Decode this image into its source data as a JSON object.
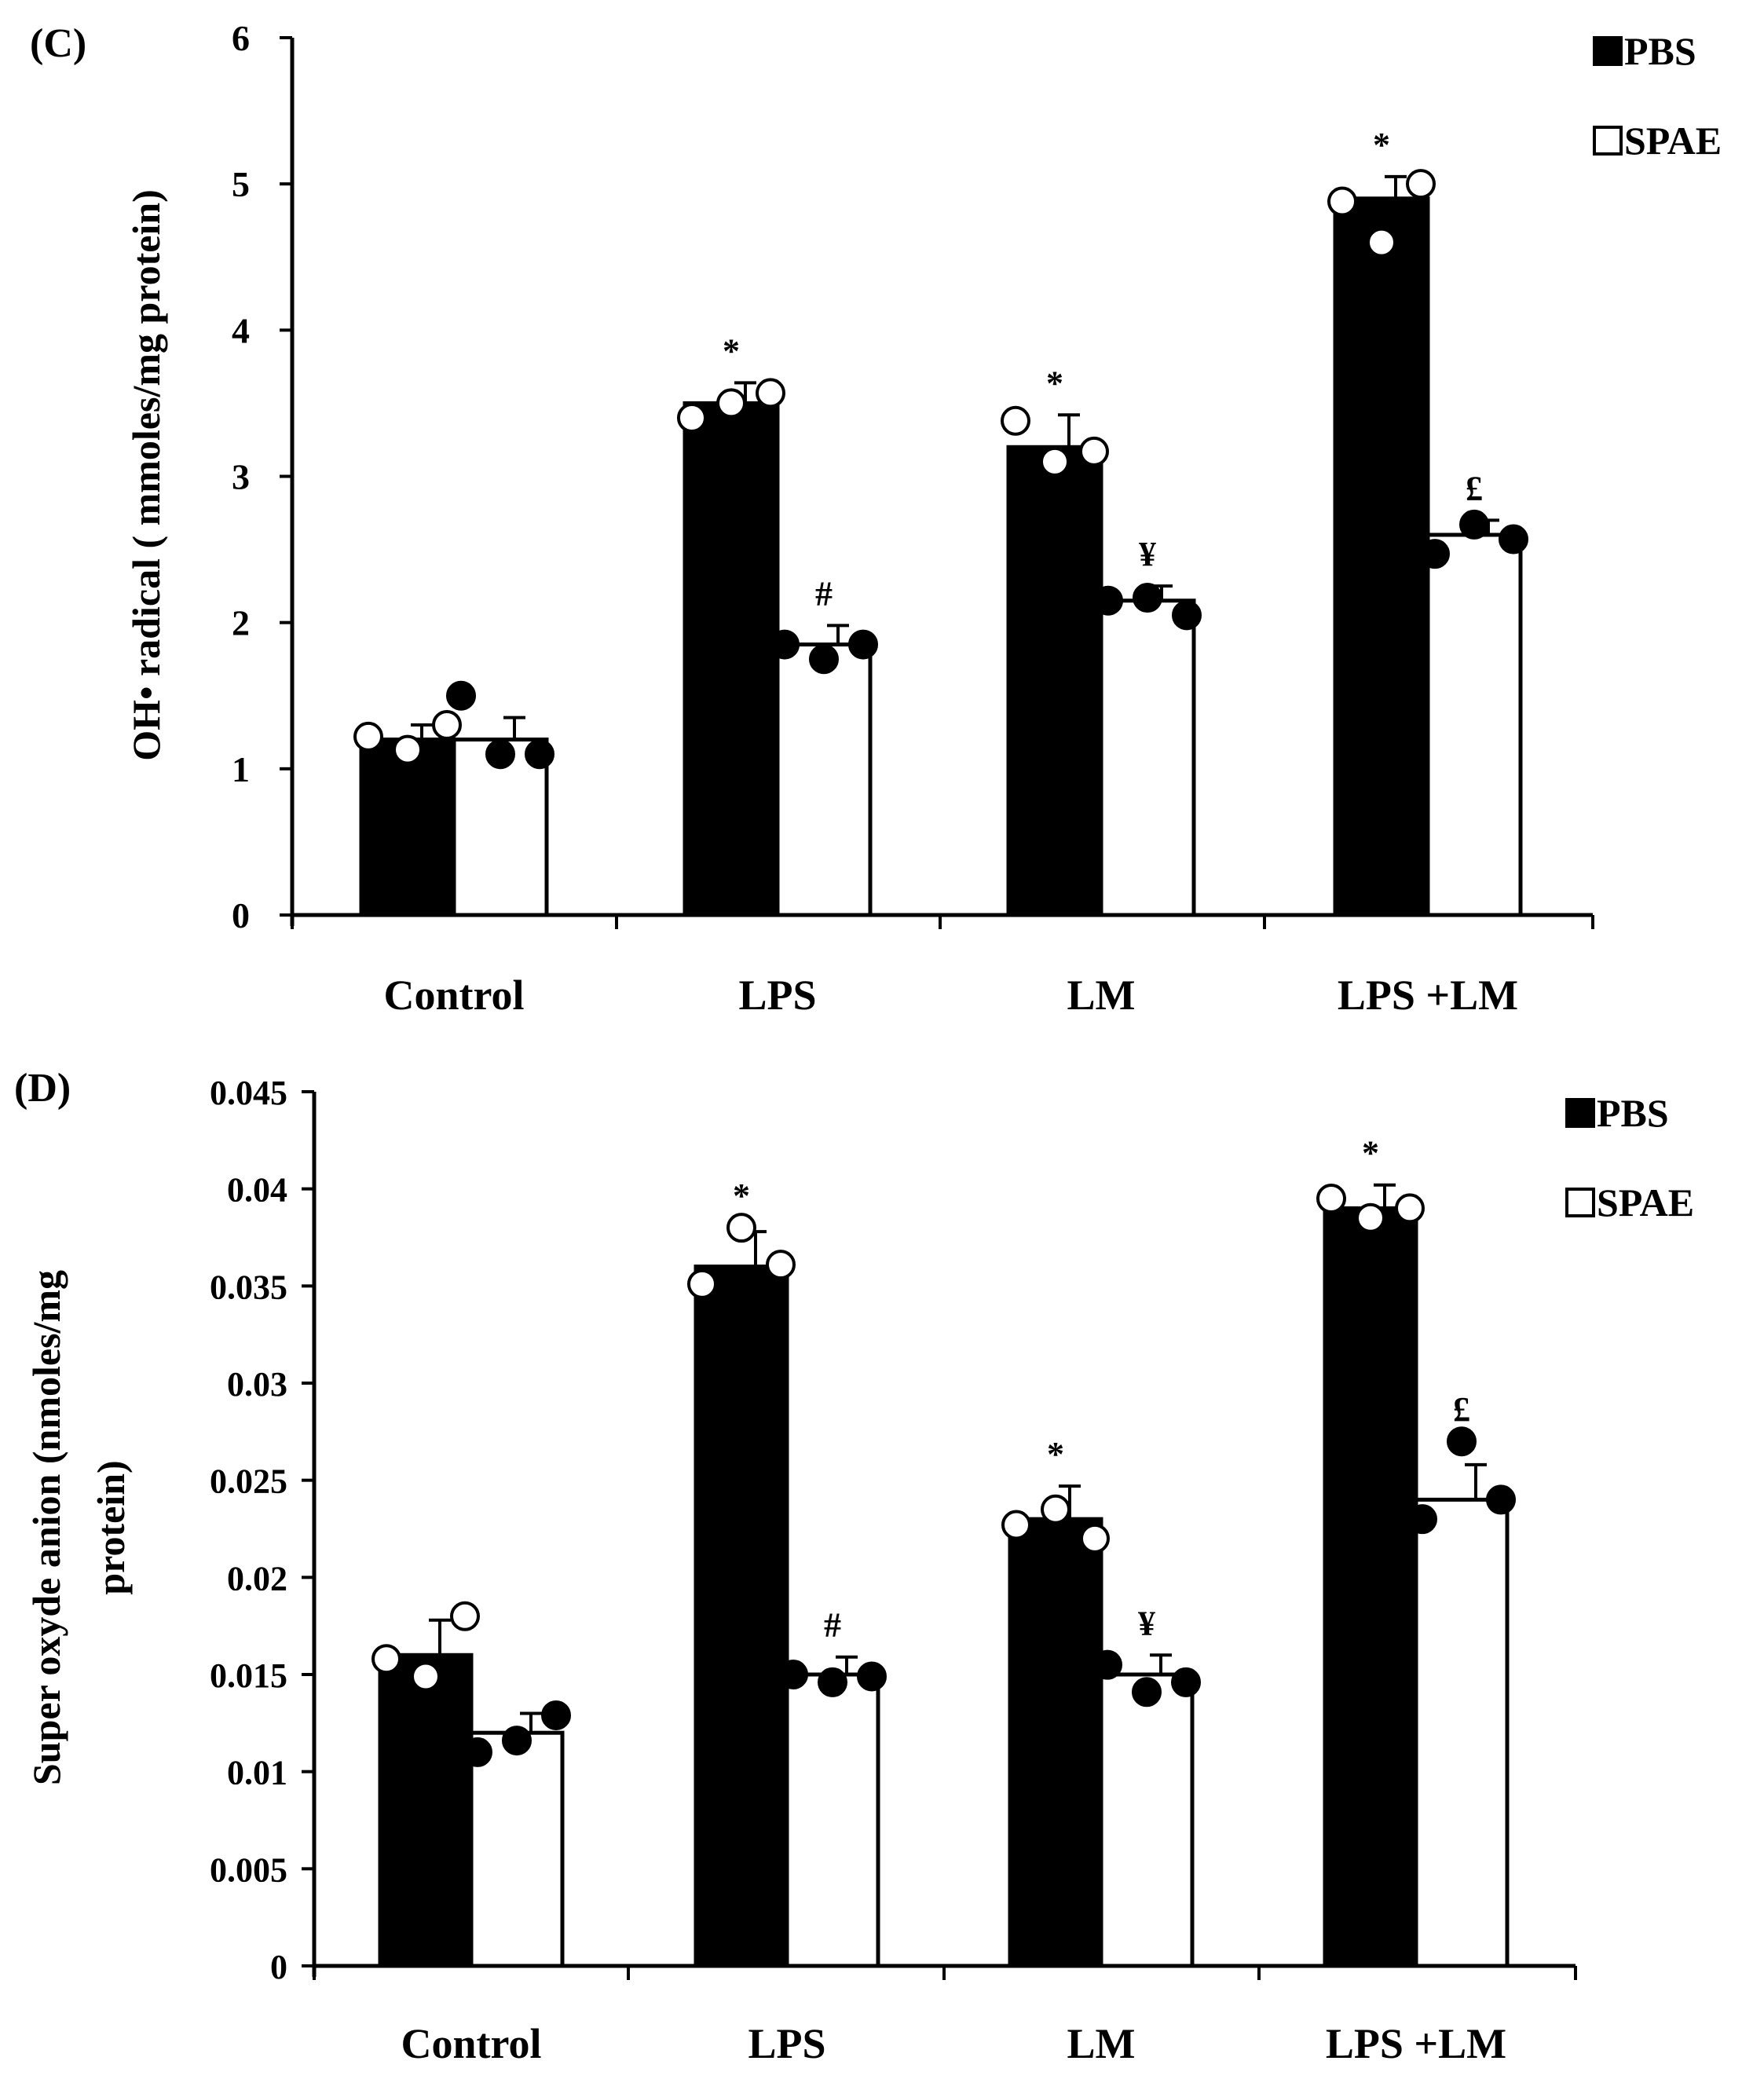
{
  "chart_data": [
    {
      "panel_label": "(C)",
      "type": "bar",
      "ylabel": "OH• radical ( mmoles/mg protein)",
      "ylim": [
        0,
        6
      ],
      "yticks": [
        "0",
        "1",
        "2",
        "3",
        "4",
        "5",
        "6"
      ],
      "categories": [
        "Control",
        "LPS",
        "LM",
        "LPS +LM"
      ],
      "legend": [
        {
          "name": "PBS",
          "swatch": "filled"
        },
        {
          "name": "SPAE",
          "swatch": "open"
        }
      ],
      "series": [
        {
          "name": "PBS",
          "fill": "#000000",
          "values": [
            1.2,
            3.5,
            3.2,
            4.9
          ],
          "errors": [
            0.1,
            0.14,
            0.22,
            0.15
          ],
          "points": [
            [
              1.22,
              1.13,
              1.3
            ],
            [
              3.4,
              3.5,
              3.57
            ],
            [
              3.38,
              3.1,
              3.17
            ],
            [
              4.88,
              4.6,
              5.0
            ]
          ],
          "marks": [
            "",
            "*",
            "*",
            "*"
          ]
        },
        {
          "name": "SPAE",
          "fill": "#ffffff",
          "values": [
            1.2,
            1.85,
            2.15,
            2.6
          ],
          "errors": [
            0.15,
            0.13,
            0.1,
            0.1
          ],
          "points": [
            [
              1.5,
              1.1,
              1.1
            ],
            [
              1.85,
              1.75,
              1.85
            ],
            [
              2.15,
              2.17,
              2.05
            ],
            [
              2.47,
              2.67,
              2.57
            ]
          ],
          "marks": [
            "",
            "#",
            "¥",
            "£"
          ]
        }
      ]
    },
    {
      "panel_label": "(D)",
      "type": "bar",
      "ylabel_lines": [
        "Super oxyde anion (nmoles/mg",
        "protein)"
      ],
      "ylim": [
        0,
        0.045
      ],
      "yticks": [
        "0",
        "0.005",
        "0.01",
        "0.015",
        "0.02",
        "0.025",
        "0.03",
        "0.035",
        "0.04",
        "0.045"
      ],
      "categories": [
        "Control",
        "LPS",
        "LM",
        "LPS +LM"
      ],
      "legend": [
        {
          "name": "PBS",
          "swatch": "filled"
        },
        {
          "name": "SPAE",
          "swatch": "open"
        }
      ],
      "series": [
        {
          "name": "PBS",
          "fill": "#000000",
          "values": [
            0.016,
            0.036,
            0.023,
            0.039
          ],
          "errors": [
            0.0018,
            0.0018,
            0.0017,
            0.0012
          ],
          "points": [
            [
              0.0158,
              0.0149,
              0.018
            ],
            [
              0.0351,
              0.038,
              0.0361
            ],
            [
              0.0227,
              0.0235,
              0.022
            ],
            [
              0.0395,
              0.0385,
              0.039
            ]
          ],
          "marks": [
            "",
            "*",
            "*",
            "*"
          ]
        },
        {
          "name": "SPAE",
          "fill": "#ffffff",
          "values": [
            0.012,
            0.015,
            0.015,
            0.024
          ],
          "errors": [
            0.001,
            0.0009,
            0.001,
            0.0018
          ],
          "points": [
            [
              0.011,
              0.0116,
              0.0129
            ],
            [
              0.015,
              0.0146,
              0.0149
            ],
            [
              0.0155,
              0.0141,
              0.0146
            ],
            [
              0.023,
              0.027,
              0.024
            ]
          ],
          "marks": [
            "",
            "#",
            "¥",
            "£"
          ]
        }
      ]
    }
  ]
}
